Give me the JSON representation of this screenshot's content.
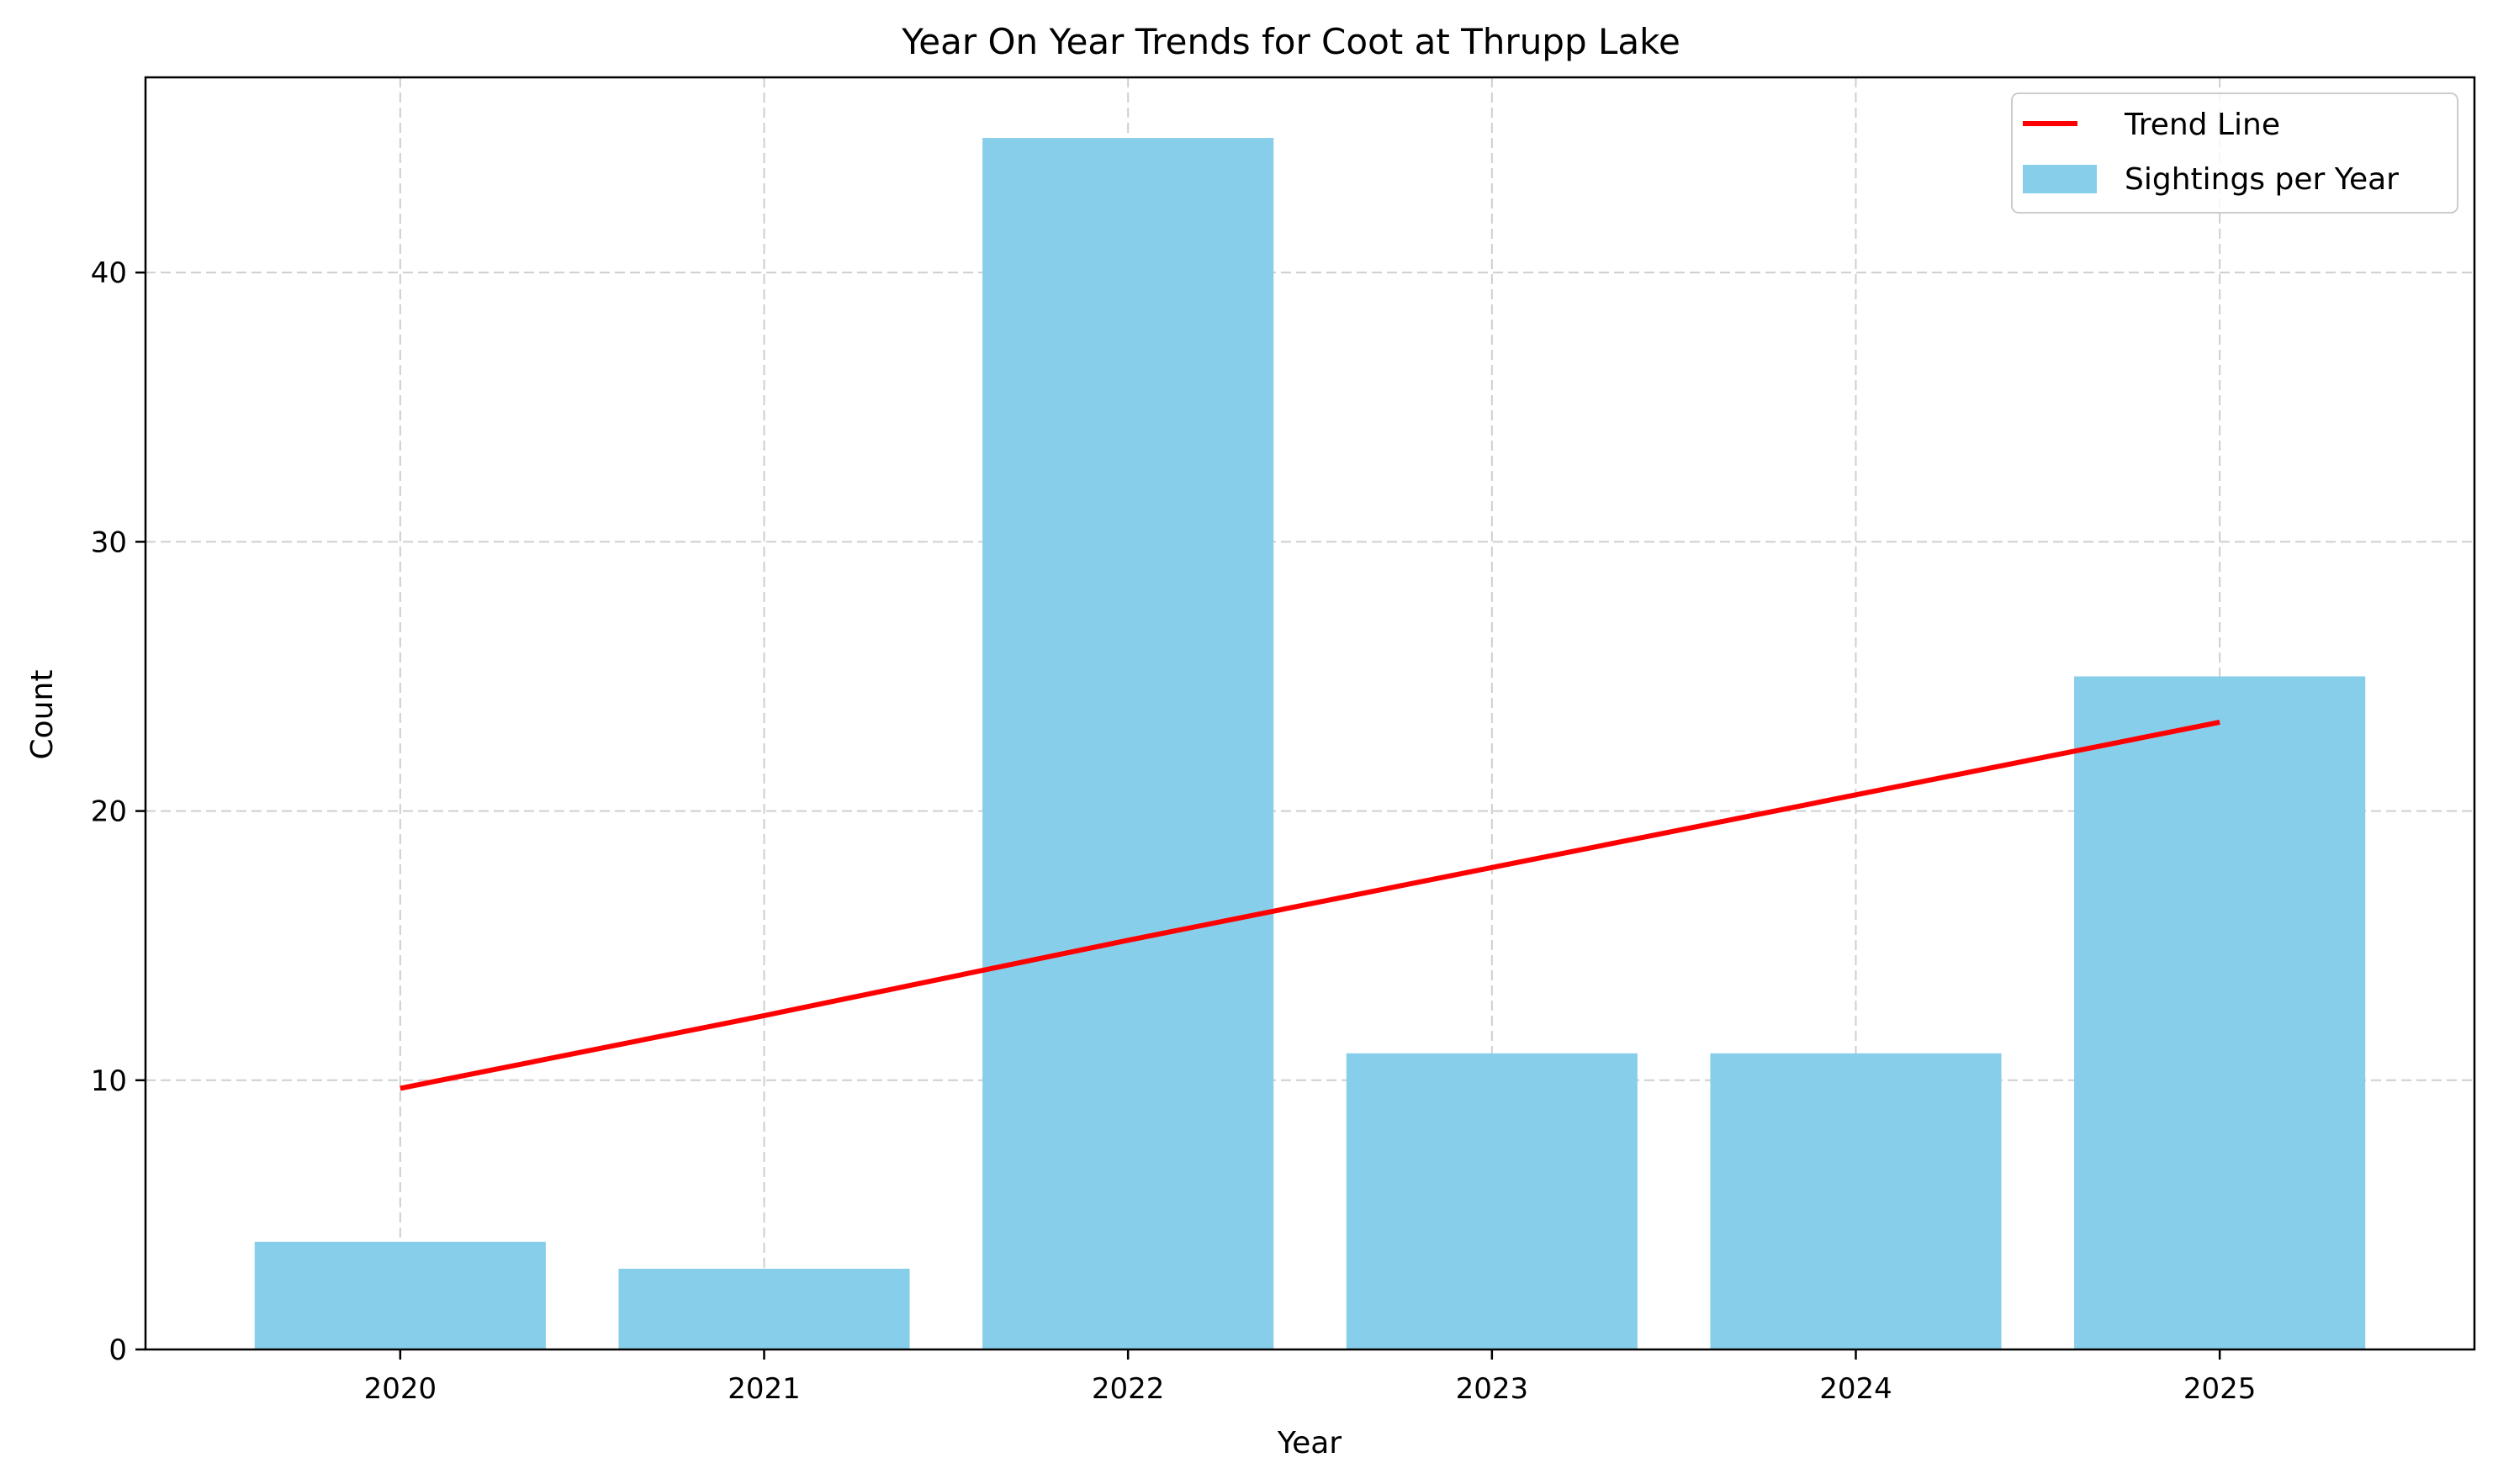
{
  "chart_data": {
    "type": "bar",
    "title": "Year On Year Trends for Coot at Thrupp Lake",
    "xlabel": "Year",
    "ylabel": "Count",
    "categories": [
      "2020",
      "2021",
      "2022",
      "2023",
      "2024",
      "2025"
    ],
    "ylim": [
      0,
      47.25
    ],
    "yticks": [
      0,
      10,
      20,
      30,
      40
    ],
    "grid": true,
    "legend_position": "top-right",
    "series": [
      {
        "name": "Sightings per Year",
        "type": "bar",
        "color": "#87ceeb",
        "values": [
          4,
          3,
          45,
          11,
          11,
          25
        ]
      },
      {
        "name": "Trend Line",
        "type": "line",
        "color": "#ff0000",
        "values": [
          9.7,
          12.4,
          15.2,
          17.9,
          20.6,
          23.3
        ]
      }
    ],
    "legend_order": [
      "Trend Line",
      "Sightings per Year"
    ]
  }
}
